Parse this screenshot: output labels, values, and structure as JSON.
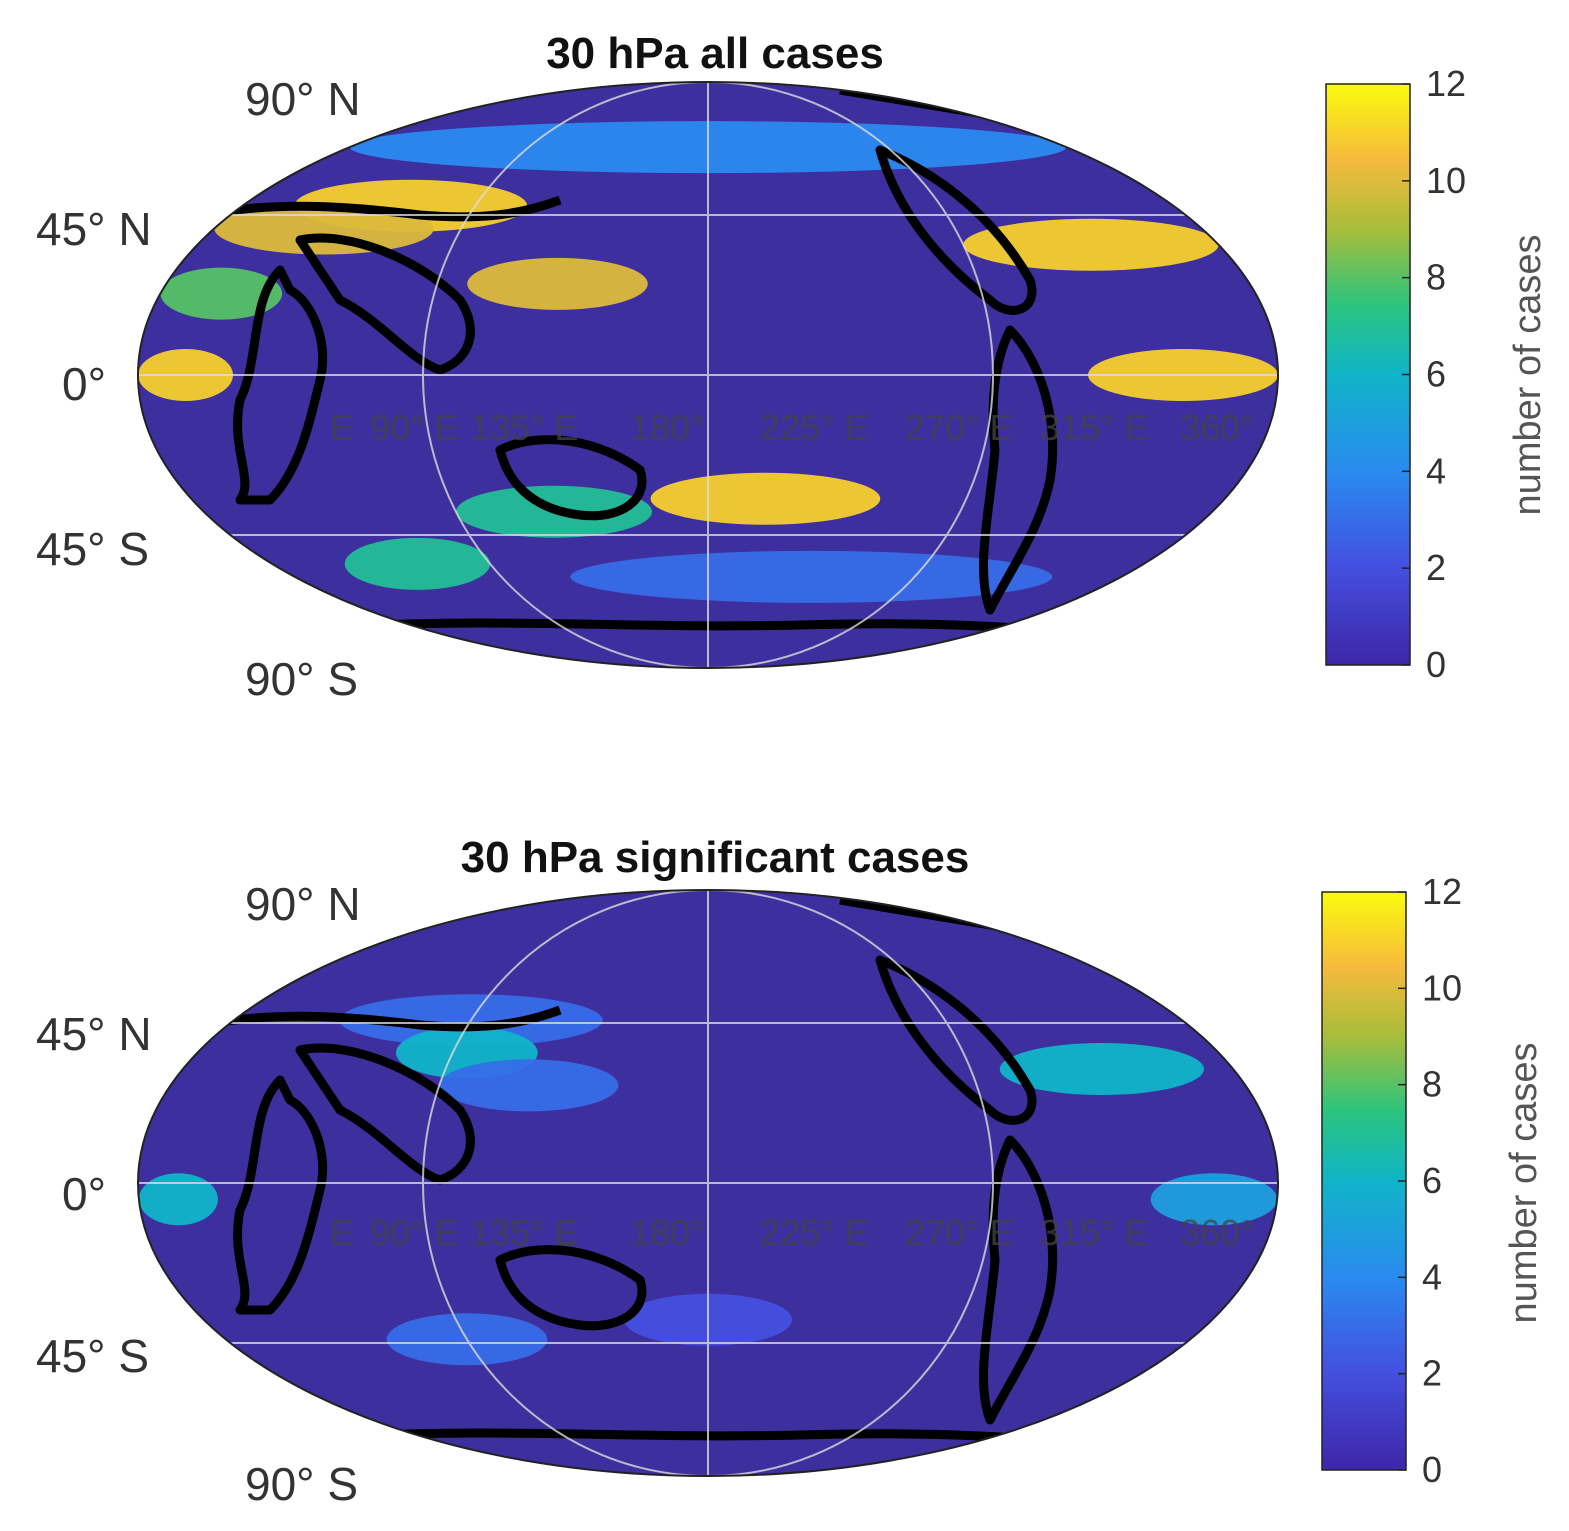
{
  "panels": [
    {
      "id": "all",
      "title": "30 hPa all cases",
      "lat_labels": [
        "90° N",
        "45° N",
        "0°",
        "45° S",
        "90° S"
      ],
      "lon_labels": [
        "E",
        "90° E",
        "135° E",
        "180°",
        "225° E",
        "270° E",
        "315° E",
        "360°"
      ],
      "colorbar": {
        "label": "number of cases",
        "ticks": [
          "0",
          "2",
          "4",
          "6",
          "8",
          "10",
          "12"
        ],
        "range": [
          0,
          12
        ]
      },
      "bands": [
        {
          "lat": 70,
          "lonStart": -180,
          "lonEnd": 180,
          "value": 4
        },
        {
          "lat": 52,
          "lonStart": -160,
          "lonEnd": -70,
          "value": 11
        },
        {
          "lat": 45,
          "lonStart": -180,
          "lonEnd": -100,
          "value": 10
        },
        {
          "lat": 40,
          "lonStart": 90,
          "lonEnd": 180,
          "value": 11
        },
        {
          "lat": 28,
          "lonStart": -80,
          "lonEnd": -20,
          "value": 10
        },
        {
          "lat": 25,
          "lonStart": -180,
          "lonEnd": -140,
          "value": 8
        },
        {
          "lat": 0,
          "lonStart": -180,
          "lonEnd": -150,
          "value": 11
        },
        {
          "lat": 0,
          "lonStart": 120,
          "lonEnd": 180,
          "value": 11
        },
        {
          "lat": -38,
          "lonStart": -20,
          "lonEnd": 60,
          "value": 11
        },
        {
          "lat": -42,
          "lonStart": -90,
          "lonEnd": -20,
          "value": 7
        },
        {
          "lat": -58,
          "lonStart": -150,
          "lonEnd": -90,
          "value": 7
        },
        {
          "lat": -62,
          "lonStart": -60,
          "lonEnd": 150,
          "value": 3
        }
      ]
    },
    {
      "id": "significant",
      "title": "30 hPa significant cases",
      "lat_labels": [
        "90° N",
        "45° N",
        "0°",
        "45° S",
        "90° S"
      ],
      "lon_labels": [
        "E",
        "90° E",
        "135° E",
        "180°",
        "225° E",
        "270° E",
        "315° E",
        "360°"
      ],
      "colorbar": {
        "label": "number of cases",
        "ticks": [
          "0",
          "2",
          "4",
          "6",
          "8",
          "10",
          "12"
        ],
        "range": [
          0,
          12
        ]
      },
      "bands": [
        {
          "lat": 50,
          "lonStart": -140,
          "lonEnd": -40,
          "value": 3
        },
        {
          "lat": 40,
          "lonStart": -110,
          "lonEnd": -60,
          "value": 6
        },
        {
          "lat": 35,
          "lonStart": 100,
          "lonEnd": 170,
          "value": 6
        },
        {
          "lat": 30,
          "lonStart": -90,
          "lonEnd": -30,
          "value": 3
        },
        {
          "lat": -5,
          "lonStart": 140,
          "lonEnd": 180,
          "value": 5
        },
        {
          "lat": -5,
          "lonStart": -180,
          "lonEnd": -155,
          "value": 6
        },
        {
          "lat": -42,
          "lonStart": -30,
          "lonEnd": 30,
          "value": 2
        },
        {
          "lat": -48,
          "lonStart": -120,
          "lonEnd": -60,
          "value": 3
        }
      ]
    }
  ],
  "colors": {
    "background": "#3e2f9e",
    "coast": "#000000",
    "grid": "#dcdcdc"
  }
}
